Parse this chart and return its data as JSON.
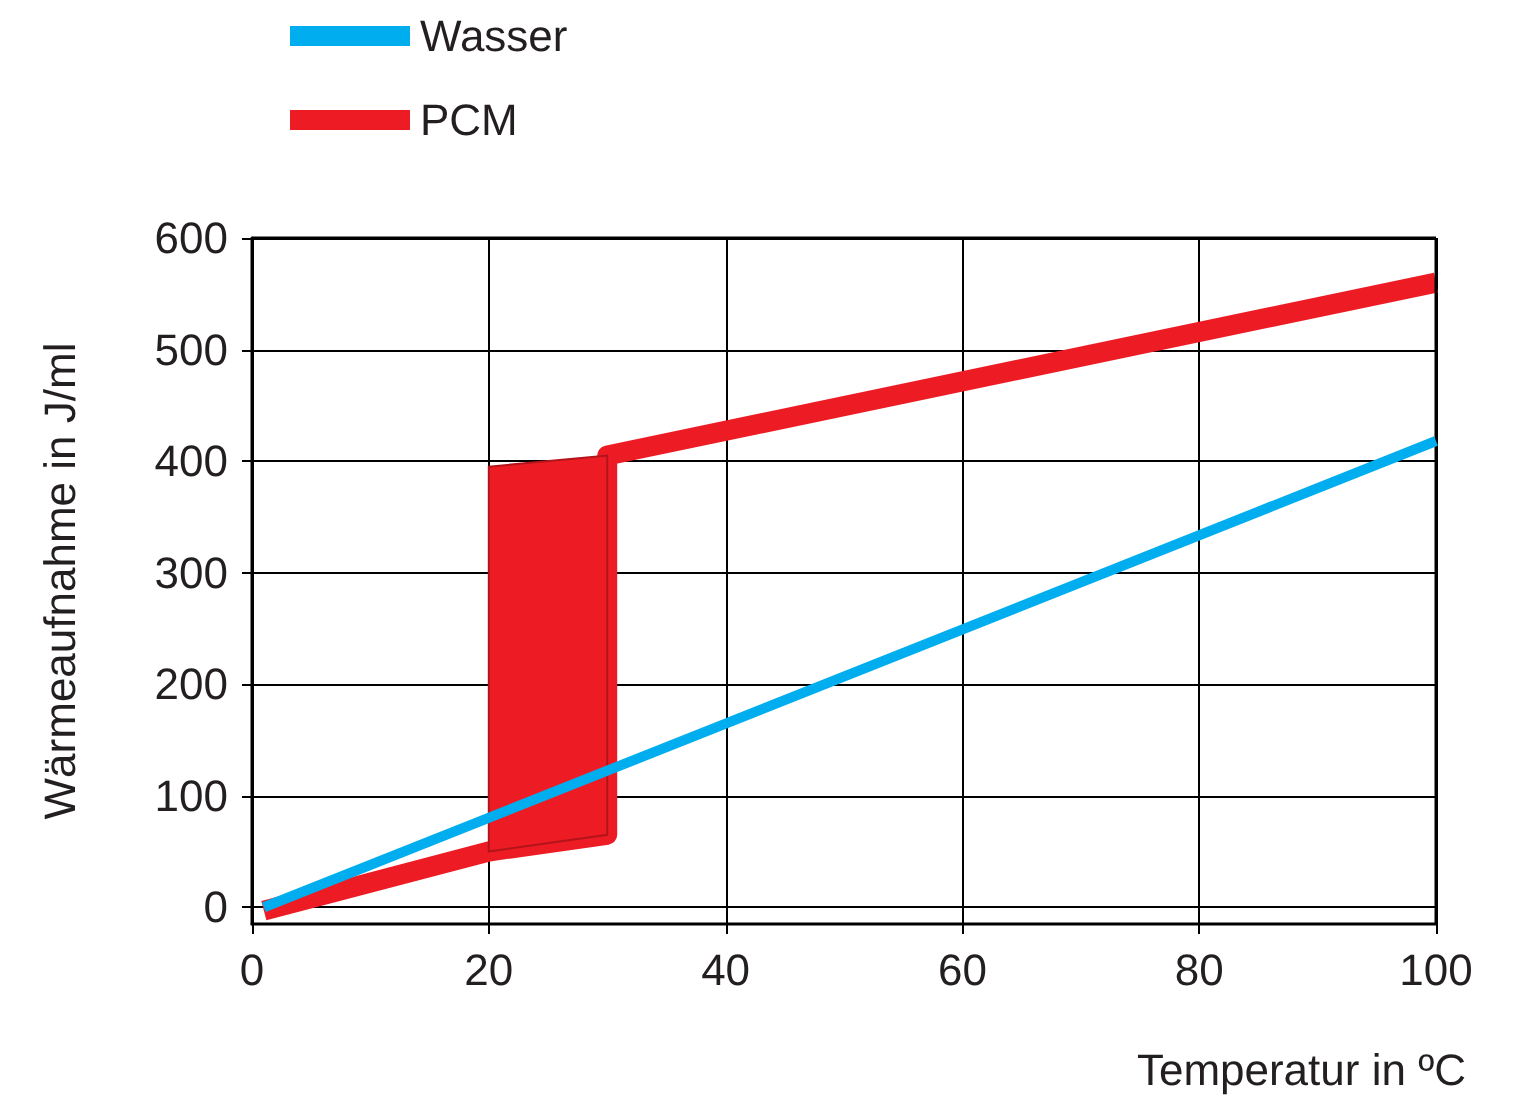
{
  "chart_data": {
    "type": "line",
    "xlabel": "Temperatur in ºC",
    "ylabel": "Wärmeaufnahme in J/ml",
    "series": [
      {
        "name": "Wasser",
        "color": "#00aeef",
        "x": [
          1,
          100
        ],
        "values": [
          0,
          418
        ]
      },
      {
        "name": "PCM",
        "color": "#ed1c24",
        "x": [
          1,
          20,
          30,
          30,
          100
        ],
        "values": [
          -3,
          50,
          65,
          405,
          560
        ],
        "lower": [
          null,
          50,
          65,
          null,
          null
        ],
        "upper": [
          null,
          395,
          405,
          null,
          null
        ]
      }
    ],
    "xlim": [
      0,
      100
    ],
    "xticks": [
      0,
      20,
      40,
      60,
      80,
      100
    ],
    "ylim": [
      -15,
      600
    ],
    "yticks": [
      0,
      100,
      200,
      300,
      400,
      500,
      600
    ],
    "grid": true,
    "legend": "top",
    "marker": "none",
    "line_style": "solid"
  }
}
